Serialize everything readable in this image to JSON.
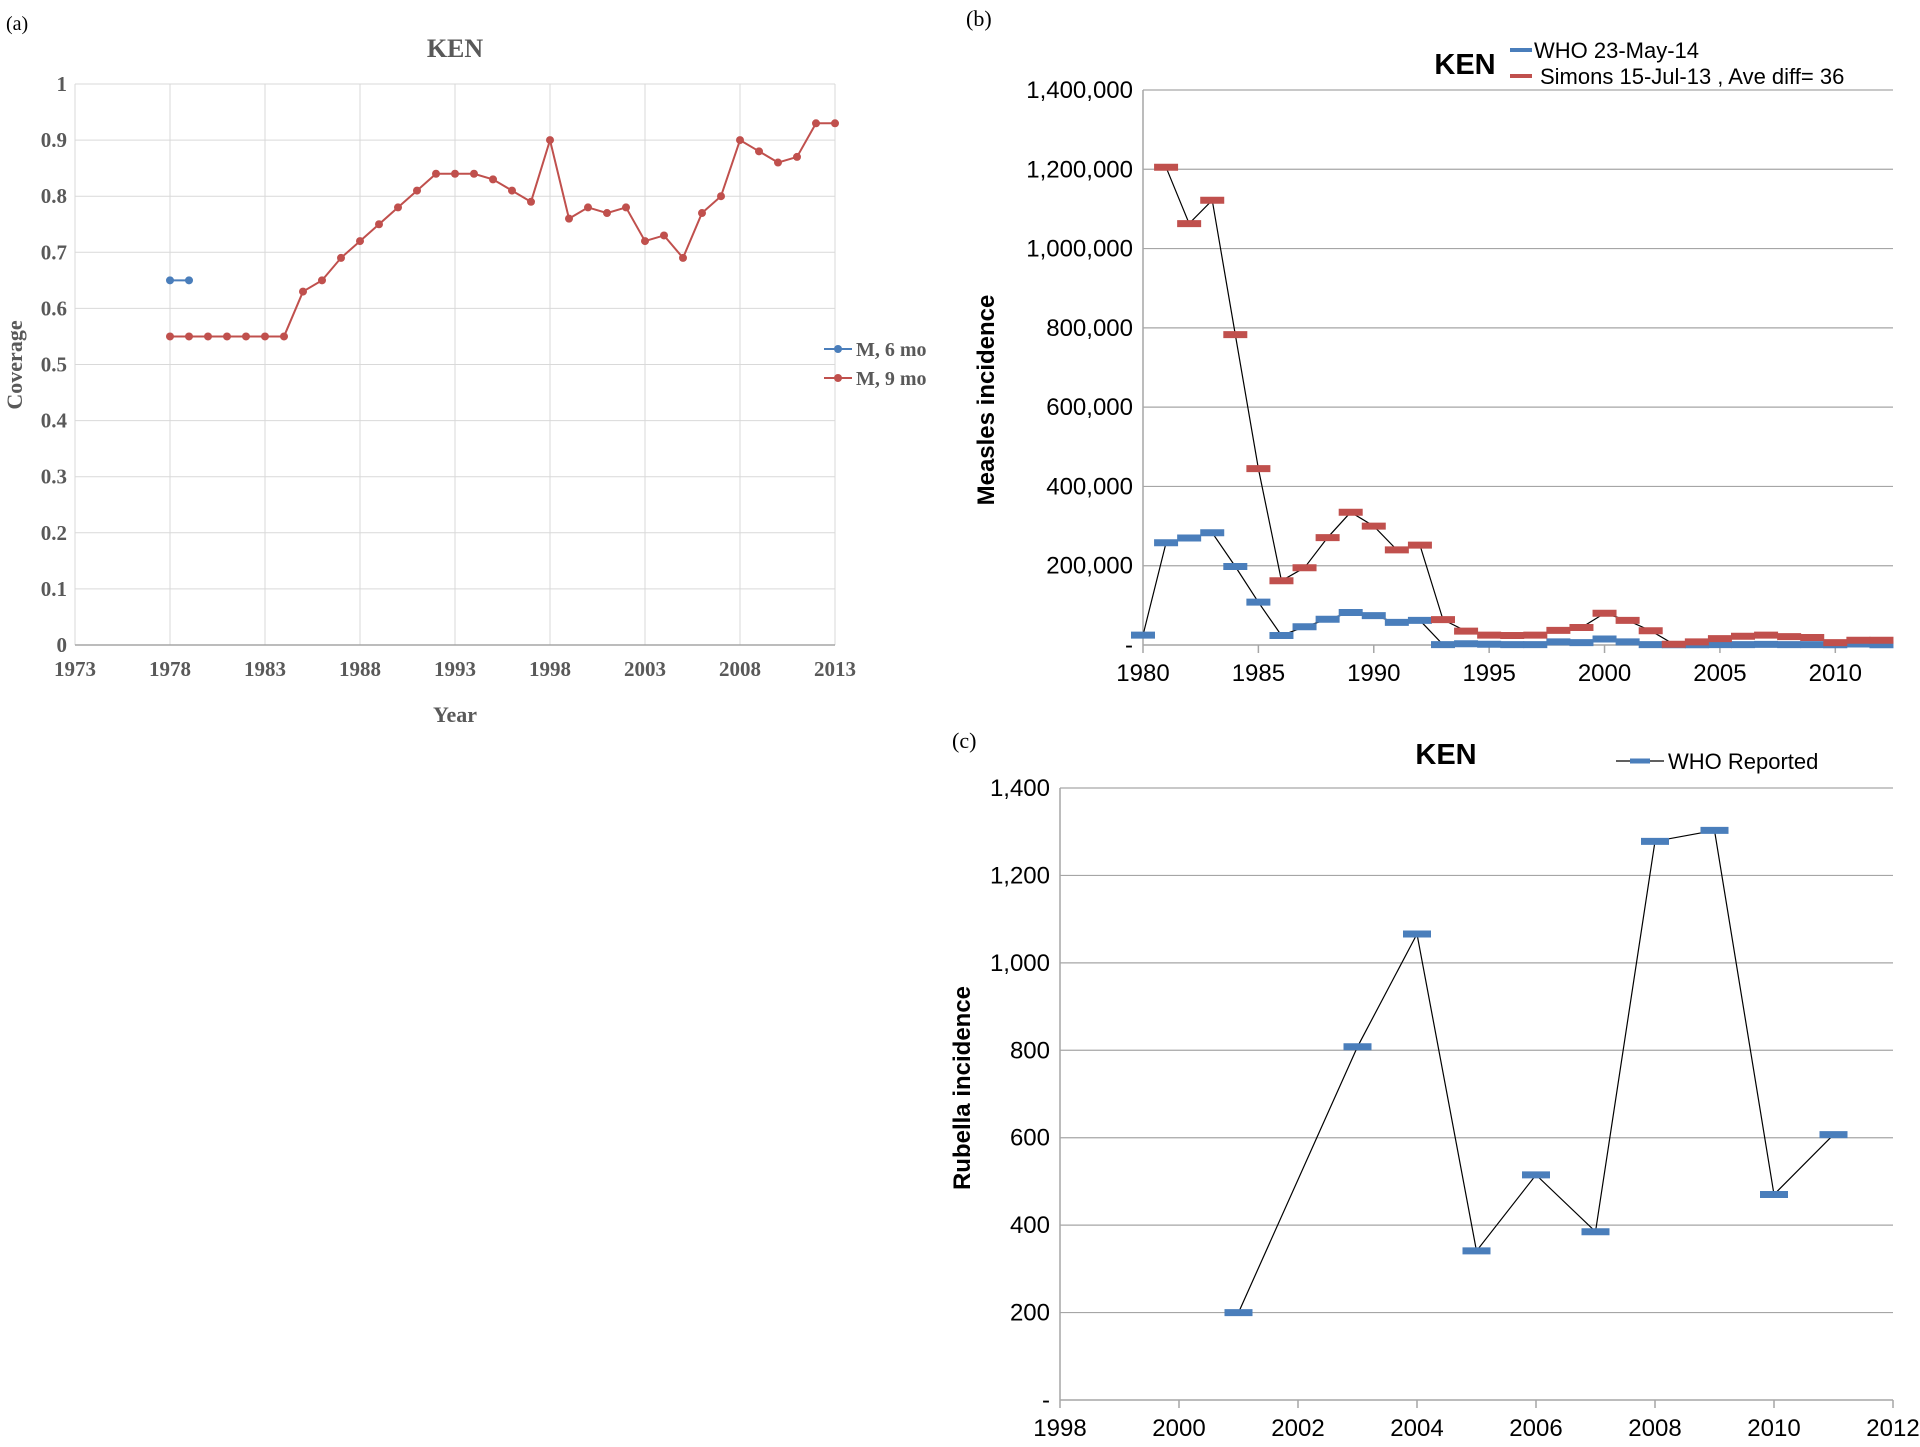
{
  "colors": {
    "blue": "#4a7ebb",
    "red": "#c0504d",
    "black": "#000000",
    "grid": "#a6a6a6",
    "grid_light": "#d9d9d9",
    "axis_text_a": "#595959"
  },
  "chart_data": [
    {
      "panel_label": "(a)",
      "type": "line",
      "title": "KEN",
      "xlabel": "Year",
      "ylabel": "Coverage",
      "xlim": [
        1973,
        2013
      ],
      "ylim": [
        0,
        1
      ],
      "xticks": [
        "1973",
        "1978",
        "1983",
        "1988",
        "1993",
        "1998",
        "2003",
        "2008",
        "2013"
      ],
      "yticks": [
        "0",
        "0.1",
        "0.2",
        "0.3",
        "0.4",
        "0.5",
        "0.6",
        "0.7",
        "0.8",
        "0.9",
        "1"
      ],
      "grid": true,
      "legend_position": "right",
      "series": [
        {
          "name": "M, 6 mo",
          "color": "#4a7ebb",
          "x": [
            1978,
            1979
          ],
          "y": [
            0.65,
            0.65
          ]
        },
        {
          "name": "M, 9 mo",
          "color": "#c0504d",
          "x": [
            1978,
            1979,
            1980,
            1981,
            1982,
            1983,
            1984,
            1985,
            1986,
            1987,
            1988,
            1989,
            1990,
            1991,
            1992,
            1993,
            1994,
            1995,
            1996,
            1997,
            1998,
            1999,
            2000,
            2001,
            2002,
            2003,
            2004,
            2005,
            2006,
            2007,
            2008,
            2009,
            2010,
            2011,
            2012,
            2013
          ],
          "y": [
            0.55,
            0.55,
            0.55,
            0.55,
            0.55,
            0.55,
            0.55,
            0.63,
            0.65,
            0.69,
            0.72,
            0.75,
            0.78,
            0.81,
            0.84,
            0.84,
            0.84,
            0.83,
            0.81,
            0.79,
            0.9,
            0.76,
            0.78,
            0.77,
            0.78,
            0.72,
            0.73,
            0.69,
            0.77,
            0.8,
            0.9,
            0.88,
            0.86,
            0.87,
            0.93,
            0.93
          ]
        }
      ]
    },
    {
      "panel_label": "(b)",
      "type": "line",
      "title": "KEN",
      "xlabel": "",
      "ylabel": "Measles incidence",
      "xlim": [
        1980,
        2012.5
      ],
      "ylim": [
        0,
        1400000
      ],
      "xticks": [
        "1980",
        "1985",
        "1990",
        "1995",
        "2000",
        "2005",
        "2010"
      ],
      "yticks": [
        "-",
        "200,000",
        "400,000",
        "600,000",
        "800,000",
        "1,000,000",
        "1,200,000",
        "1,400,000"
      ],
      "grid": true,
      "legend_position": "top-right",
      "series": [
        {
          "name": "WHO 23-May-14",
          "color": "#4a7ebb",
          "x": [
            1980,
            1981,
            1982,
            1983,
            1984,
            1985,
            1986,
            1987,
            1988,
            1989,
            1990,
            1991,
            1992,
            1993,
            1994,
            1995,
            1996,
            1997,
            1998,
            1999,
            2000,
            2001,
            2002,
            2003,
            2004,
            2005,
            2006,
            2007,
            2008,
            2009,
            2010,
            2011,
            2012
          ],
          "y": [
            25000,
            258000,
            270000,
            283000,
            198000,
            108000,
            24000,
            46000,
            65000,
            82000,
            74000,
            57000,
            62000,
            1000,
            3000,
            2000,
            1000,
            1000,
            8000,
            6000,
            15000,
            8000,
            1000,
            500,
            500,
            1000,
            1000,
            1500,
            1000,
            1000,
            500,
            2500,
            500
          ]
        },
        {
          "name": "Simons 15-Jul-13 , Ave diff= 36",
          "color": "#c0504d",
          "x": [
            1981,
            1982,
            1983,
            1984,
            1985,
            1986,
            1987,
            1988,
            1989,
            1990,
            1991,
            1992,
            1993,
            1994,
            1995,
            1996,
            1997,
            1998,
            1999,
            2000,
            2001,
            2002,
            2003,
            2004,
            2005,
            2006,
            2007,
            2008,
            2009,
            2010,
            2011,
            2012
          ],
          "y": [
            1205000,
            1063000,
            1122000,
            783000,
            445000,
            162000,
            195000,
            271000,
            335000,
            300000,
            240000,
            252000,
            64000,
            35000,
            25000,
            24000,
            25000,
            37000,
            44000,
            80000,
            62000,
            36000,
            2000,
            8000,
            16000,
            22000,
            25000,
            21000,
            19000,
            6000,
            12000,
            12000
          ]
        }
      ]
    },
    {
      "panel_label": "(c)",
      "type": "line",
      "title": "KEN",
      "xlabel": "",
      "ylabel": "Rubella incidence",
      "xlim": [
        1998,
        2012
      ],
      "ylim": [
        0,
        1400
      ],
      "xticks": [
        "1998",
        "2000",
        "2002",
        "2004",
        "2006",
        "2008",
        "2010",
        "2012"
      ],
      "yticks": [
        "-",
        "200",
        "400",
        "600",
        "800",
        "1,000",
        "1,200",
        "1,400"
      ],
      "grid": true,
      "legend_position": "top-right",
      "series": [
        {
          "name": "WHO Reported",
          "color": "#4a7ebb",
          "x": [
            2001,
            2003,
            2004,
            2005,
            2006,
            2007,
            2008,
            2009,
            2010,
            2011
          ],
          "y": [
            200,
            808,
            1066,
            341,
            515,
            385,
            1278,
            1303,
            470,
            607
          ]
        }
      ]
    }
  ]
}
